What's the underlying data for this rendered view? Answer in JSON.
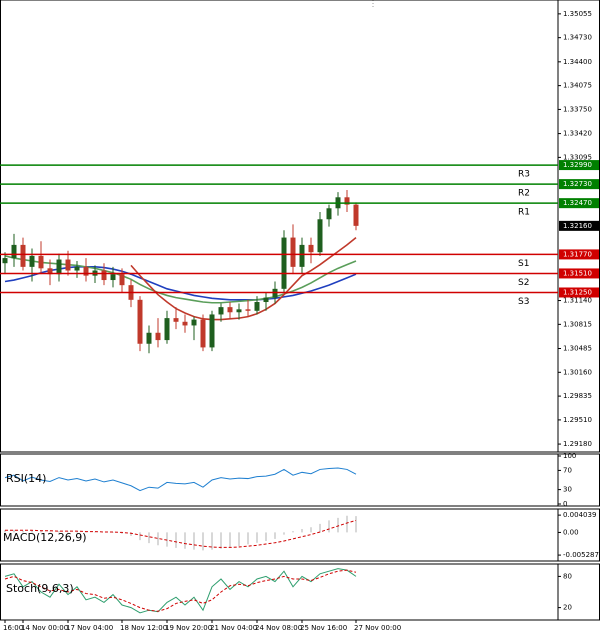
{
  "chart_data": [
    {
      "type": "candlestick",
      "x": [
        "16:00",
        null,
        "14 Nov 00:00",
        null,
        null,
        null,
        null,
        "17 Nov 04:00",
        null,
        null,
        null,
        null,
        null,
        "18 Nov 12:00",
        null,
        null,
        null,
        null,
        "19 Nov 20:00",
        null,
        null,
        null,
        null,
        "21 Nov 04:00",
        null,
        null,
        null,
        null,
        "24 Nov 08:00",
        null,
        null,
        null,
        null,
        "25 Nov 16:00",
        null,
        null,
        null,
        null,
        null,
        "27 Nov 00:00"
      ],
      "open": [
        1.3165,
        1.3172,
        1.319,
        1.316,
        1.3175,
        1.3158,
        1.315,
        1.317,
        1.3155,
        1.316,
        1.3148,
        1.3155,
        1.3142,
        1.315,
        1.3135,
        1.3115,
        1.3055,
        1.307,
        1.306,
        1.309,
        1.3085,
        1.308,
        1.3088,
        1.305,
        1.3095,
        1.3105,
        1.3098,
        1.3102,
        1.31,
        1.3112,
        1.3118,
        1.313,
        1.32,
        1.316,
        1.319,
        1.318,
        1.3225,
        1.324,
        1.3255,
        1.3245
      ],
      "high": [
        1.318,
        1.3205,
        1.32,
        1.3185,
        1.3195,
        1.317,
        1.3178,
        1.3182,
        1.3168,
        1.3172,
        1.3162,
        1.3165,
        1.316,
        1.3158,
        1.3142,
        1.312,
        1.308,
        1.309,
        1.31,
        1.3105,
        1.3095,
        1.3092,
        1.3095,
        1.31,
        1.311,
        1.3112,
        1.311,
        1.3115,
        1.312,
        1.3125,
        1.314,
        1.321,
        1.3218,
        1.32,
        1.32,
        1.3235,
        1.3245,
        1.3262,
        1.3265,
        1.3248
      ],
      "low": [
        1.315,
        1.316,
        1.3155,
        1.314,
        1.315,
        1.3135,
        1.314,
        1.3148,
        1.3145,
        1.314,
        1.3138,
        1.3135,
        1.3132,
        1.3125,
        1.3105,
        1.3045,
        1.3042,
        1.305,
        1.3055,
        1.3075,
        1.307,
        1.306,
        1.3045,
        1.3045,
        1.3085,
        1.309,
        1.3088,
        1.3092,
        1.3095,
        1.31,
        1.311,
        1.3125,
        1.315,
        1.315,
        1.3165,
        1.3175,
        1.3215,
        1.323,
        1.3235,
        1.321
      ],
      "close": [
        1.3172,
        1.319,
        1.316,
        1.3175,
        1.3158,
        1.315,
        1.317,
        1.3155,
        1.316,
        1.3148,
        1.3155,
        1.3142,
        1.315,
        1.3135,
        1.3115,
        1.3055,
        1.307,
        1.306,
        1.309,
        1.3085,
        1.308,
        1.3088,
        1.305,
        1.3095,
        1.3105,
        1.3098,
        1.3102,
        1.31,
        1.3112,
        1.3118,
        1.313,
        1.32,
        1.316,
        1.319,
        1.318,
        1.3225,
        1.324,
        1.3255,
        1.3245,
        1.3216
      ],
      "bull_color": "#1f5f1f",
      "bear_color": "#c0392b",
      "series": [
        {
          "color": "#1f3fbf",
          "values": [
            1.314,
            1.3142,
            1.3145,
            1.3148,
            1.3152,
            1.3155,
            1.3157,
            1.3159,
            1.316,
            1.316,
            1.316,
            1.3159,
            1.3157,
            1.3154,
            1.315,
            1.3145,
            1.314,
            1.3135,
            1.313,
            1.3127,
            1.3124,
            1.3121,
            1.3119,
            1.3117,
            1.3116,
            1.3115,
            1.3115,
            1.3115,
            1.3115,
            1.3116,
            1.3117,
            1.3119,
            1.3121,
            1.3124,
            1.3127,
            1.3131,
            1.3135,
            1.314,
            1.3145,
            1.315
          ]
        },
        {
          "color": "#5a9e5a",
          "values": [
            1.3175,
            1.3172,
            1.317,
            1.3168,
            1.3166,
            1.3165,
            1.3164,
            1.3163,
            1.3162,
            1.316,
            1.3158,
            1.3155,
            1.3152,
            1.3148,
            1.3143,
            1.3136,
            1.313,
            1.3125,
            1.3121,
            1.3118,
            1.3116,
            1.3114,
            1.3112,
            1.3111,
            1.3111,
            1.3112,
            1.3113,
            1.3114,
            1.3115,
            1.3117,
            1.3119,
            1.3123,
            1.3127,
            1.3132,
            1.3138,
            1.3145,
            1.3152,
            1.3158,
            1.3163,
            1.3168
          ]
        },
        {
          "color": "#c0392b",
          "values": [
            null,
            null,
            null,
            null,
            null,
            null,
            null,
            null,
            null,
            null,
            null,
            null,
            null,
            null,
            1.3162,
            1.3148,
            1.3135,
            1.3122,
            1.3112,
            1.3103,
            1.3097,
            1.3092,
            1.3089,
            1.3088,
            1.3088,
            1.3089,
            1.309,
            1.3092,
            1.3096,
            1.3102,
            1.311,
            1.3122,
            1.3135,
            1.3148,
            1.3155,
            1.3163,
            1.3172,
            1.3181,
            1.319,
            1.32
          ]
        }
      ],
      "levels": [
        {
          "name": "R3",
          "value": 1.3299,
          "value_label": "1.32990",
          "color": "#008000"
        },
        {
          "name": "R2",
          "value": 1.3273,
          "value_label": "1.32730",
          "color": "#008000"
        },
        {
          "name": "R1",
          "value": 1.3247,
          "value_label": "1.32470",
          "color": "#008000"
        },
        {
          "name": "S1",
          "value": 1.3177,
          "value_label": "1.31770",
          "color": "#d00000"
        },
        {
          "name": "S2",
          "value": 1.3151,
          "value_label": "1.31510",
          "color": "#d00000"
        },
        {
          "name": "S3",
          "value": 1.3125,
          "value_label": "1.31250",
          "color": "#d00000"
        }
      ],
      "last_price": {
        "value": 1.3216,
        "label": "1.32160"
      },
      "ylim": [
        1.29099,
        1.35217
      ],
      "yticks": [
        1.35055,
        {
          "value": 1.3473,
          "label": "1.34730"
        },
        {
          "value": 1.344,
          "label": "1.34400"
        },
        1.34075,
        {
          "value": 1.3375,
          "label": "1.33750"
        },
        {
          "value": 1.3342,
          "label": "1.33420"
        },
        1.33095,
        {
          "value": 1.3114,
          "label": "1.31140"
        },
        1.30815,
        1.30485,
        {
          "value": 1.3016,
          "label": "1.30160"
        },
        1.29835,
        {
          "value": 1.2951,
          "label": "1.29510"
        },
        {
          "value": 1.2918,
          "label": "1.29180"
        }
      ]
    },
    {
      "type": "line",
      "title": "RSI(14)",
      "ylim": [
        0,
        100
      ],
      "yticks": [
        100,
        70,
        30,
        0
      ],
      "series": [
        {
          "color": "#1e7fd0",
          "values": [
            55,
            60,
            48,
            56,
            50,
            47,
            55,
            50,
            53,
            48,
            52,
            46,
            50,
            44,
            38,
            28,
            35,
            33,
            45,
            43,
            42,
            45,
            35,
            50,
            55,
            52,
            54,
            53,
            57,
            58,
            62,
            72,
            60,
            66,
            63,
            72,
            74,
            75,
            72,
            62
          ]
        }
      ]
    },
    {
      "type": "macd",
      "title": "MACD(12,26,9)",
      "ylim": [
        -0.0062,
        0.005
      ],
      "yticks": [
        0.004039,
        {
          "value": 0,
          "label": "0.00"
        },
        -0.005287
      ],
      "histogram": {
        "color": "#b0b0b0",
        "values": [
          0.0005,
          0.0006,
          0.0004,
          0.0005,
          0.0003,
          0.0002,
          0.0003,
          0.0002,
          0.0002,
          0.0001,
          0.0001,
          0,
          -0.0001,
          -0.0003,
          -0.0008,
          -0.0018,
          -0.0025,
          -0.003,
          -0.0033,
          -0.0036,
          -0.0038,
          -0.004,
          -0.0042,
          -0.004,
          -0.0038,
          -0.0035,
          -0.0032,
          -0.0028,
          -0.0024,
          -0.002,
          -0.0015,
          -0.0005,
          0.0003,
          0.0008,
          0.0012,
          0.002,
          0.0028,
          0.0034,
          0.0039,
          0.0038
        ]
      },
      "signal": {
        "color": "#d00000",
        "values": [
          0.0005,
          0.0005,
          0.0005,
          0.0005,
          0.0004,
          0.0004,
          0.0003,
          0.0003,
          0.0003,
          0.0002,
          0.0002,
          0.0001,
          0.0001,
          0,
          -0.0002,
          -0.0006,
          -0.001,
          -0.0014,
          -0.0018,
          -0.0022,
          -0.0026,
          -0.0029,
          -0.0032,
          -0.0034,
          -0.0035,
          -0.0035,
          -0.0034,
          -0.0032,
          -0.003,
          -0.0027,
          -0.0024,
          -0.002,
          -0.0015,
          -0.001,
          -0.0005,
          0.0001,
          0.0008,
          0.0015,
          0.0022,
          0.0028
        ]
      }
    },
    {
      "type": "line",
      "title": "Stoch(9,6,3)",
      "ylim": [
        0,
        100
      ],
      "yticks": [
        80,
        20
      ],
      "series": [
        {
          "color": "#2e9e6e",
          "values": [
            80,
            85,
            60,
            70,
            50,
            40,
            65,
            45,
            60,
            35,
            40,
            30,
            45,
            25,
            20,
            10,
            15,
            12,
            30,
            40,
            25,
            40,
            15,
            60,
            75,
            55,
            70,
            60,
            75,
            80,
            70,
            90,
            60,
            80,
            70,
            85,
            90,
            95,
            92,
            80
          ]
        },
        {
          "color": "#d00000",
          "dash": true,
          "values": [
            75,
            80,
            72,
            68,
            60,
            52,
            55,
            50,
            55,
            47,
            45,
            38,
            40,
            35,
            28,
            20,
            15,
            13,
            18,
            28,
            32,
            35,
            28,
            35,
            50,
            62,
            65,
            62,
            68,
            72,
            75,
            80,
            75,
            75,
            72,
            78,
            85,
            90,
            92,
            88
          ]
        }
      ]
    }
  ]
}
